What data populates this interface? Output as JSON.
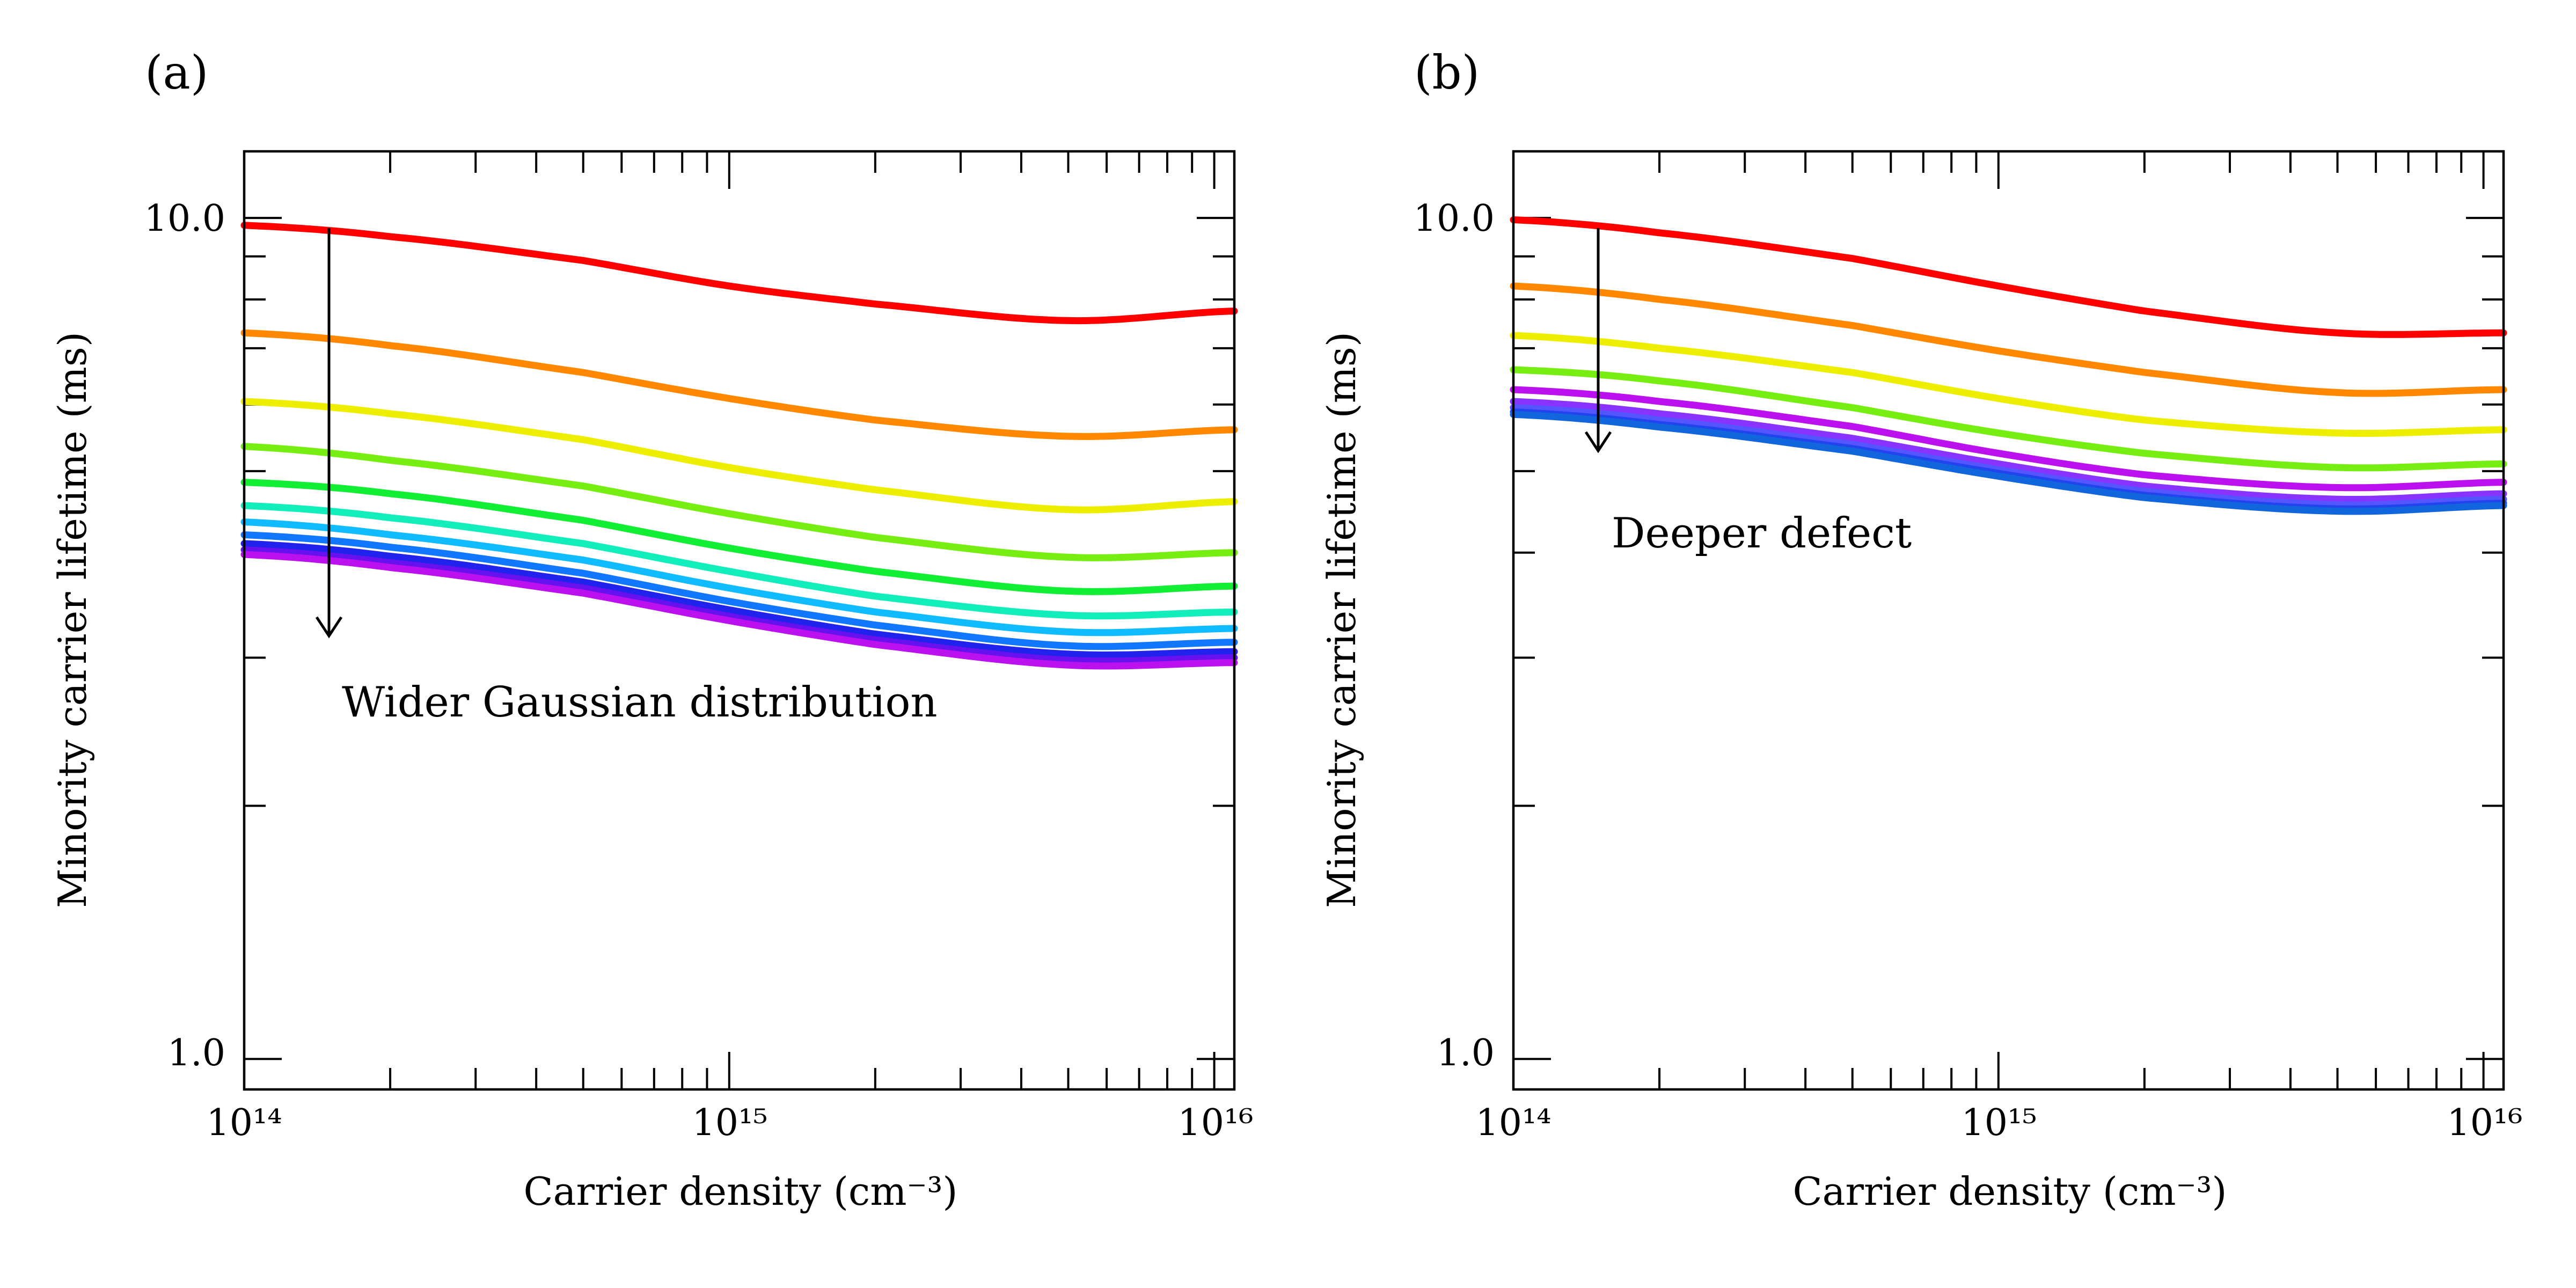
{
  "chart_data": [
    {
      "type": "line",
      "panel_label": "(a)",
      "xlabel": "Carrier density (cm⁻³)",
      "ylabel": "Minority carrier lifetime (ms)",
      "xscale": "log",
      "yscale": "log",
      "xlim": [
        100000000000000.0,
        1.1e+16
      ],
      "ylim": [
        0.92,
        12.0
      ],
      "x_tick_labels": [
        "10¹⁴",
        "10¹⁵",
        "10¹⁶"
      ],
      "y_tick_labels": [
        "1.0",
        "10.0"
      ],
      "x": [
        100000000000000.0,
        200000000000000.0,
        500000000000000.0,
        1000000000000000.0,
        2000000000000000.0,
        5000000000000000.0,
        1.1e+16
      ],
      "series": [
        {
          "color": "#ff0000",
          "values": [
            9.8,
            9.5,
            8.9,
            8.3,
            7.9,
            7.55,
            7.75
          ]
        },
        {
          "color": "#ff8800",
          "values": [
            7.3,
            7.05,
            6.55,
            6.1,
            5.75,
            5.5,
            5.6
          ]
        },
        {
          "color": "#eeee00",
          "values": [
            6.05,
            5.85,
            5.45,
            5.05,
            4.75,
            4.5,
            4.6
          ]
        },
        {
          "color": "#77ee11",
          "values": [
            5.35,
            5.15,
            4.8,
            4.45,
            4.17,
            3.95,
            4.0
          ]
        },
        {
          "color": "#11ee33",
          "values": [
            4.85,
            4.7,
            4.37,
            4.05,
            3.8,
            3.6,
            3.65
          ]
        },
        {
          "color": "#11eebb",
          "values": [
            4.55,
            4.4,
            4.1,
            3.8,
            3.55,
            3.37,
            3.4
          ]
        },
        {
          "color": "#11bbff",
          "values": [
            4.35,
            4.2,
            3.92,
            3.63,
            3.4,
            3.22,
            3.25
          ]
        },
        {
          "color": "#1177ff",
          "values": [
            4.2,
            4.06,
            3.78,
            3.5,
            3.28,
            3.1,
            3.13
          ]
        },
        {
          "color": "#2222ee",
          "values": [
            4.1,
            3.96,
            3.69,
            3.42,
            3.2,
            3.03,
            3.05
          ]
        },
        {
          "color": "#6611ee",
          "values": [
            4.03,
            3.89,
            3.63,
            3.36,
            3.15,
            2.98,
            3.0
          ]
        },
        {
          "color": "#bb11ee",
          "values": [
            3.98,
            3.84,
            3.58,
            3.32,
            3.11,
            2.94,
            2.96
          ]
        }
      ],
      "annotation": "Wider Gaussian distribution"
    },
    {
      "type": "line",
      "panel_label": "(b)",
      "xlabel": "Carrier density (cm⁻³)",
      "ylabel": "Minority carrier lifetime (ms)",
      "xscale": "log",
      "yscale": "log",
      "xlim": [
        100000000000000.0,
        1.1e+16
      ],
      "ylim": [
        0.92,
        12.0
      ],
      "x_tick_labels": [
        "10¹⁴",
        "10¹⁵",
        "10¹⁶"
      ],
      "y_tick_labels": [
        "1.0",
        "10.0"
      ],
      "x": [
        100000000000000.0,
        200000000000000.0,
        500000000000000.0,
        1000000000000000.0,
        2000000000000000.0,
        5000000000000000.0,
        1.1e+16
      ],
      "series": [
        {
          "color": "#ff0000",
          "values": [
            9.95,
            9.6,
            8.95,
            8.3,
            7.75,
            7.3,
            7.3
          ]
        },
        {
          "color": "#ff8800",
          "values": [
            8.3,
            8.0,
            7.45,
            6.95,
            6.55,
            6.2,
            6.25
          ]
        },
        {
          "color": "#eeee00",
          "values": [
            7.25,
            7.0,
            6.55,
            6.1,
            5.75,
            5.55,
            5.6
          ]
        },
        {
          "color": "#77ee11",
          "values": [
            6.6,
            6.4,
            5.95,
            5.55,
            5.25,
            5.05,
            5.1
          ]
        },
        {
          "color": "#bb11ee",
          "values": [
            6.25,
            6.05,
            5.65,
            5.25,
            4.95,
            4.78,
            4.85
          ]
        },
        {
          "color": "#8833ff",
          "values": [
            6.05,
            5.85,
            5.47,
            5.1,
            4.8,
            4.63,
            4.7
          ]
        },
        {
          "color": "#5555ff",
          "values": [
            5.95,
            5.75,
            5.38,
            5.02,
            4.73,
            4.56,
            4.63
          ]
        },
        {
          "color": "#2244ee",
          "values": [
            5.88,
            5.68,
            5.32,
            4.97,
            4.68,
            4.51,
            4.58
          ]
        },
        {
          "color": "#1166dd",
          "values": [
            5.84,
            5.64,
            5.28,
            4.93,
            4.65,
            4.48,
            4.55
          ]
        }
      ],
      "annotation": "Deeper defect"
    }
  ]
}
